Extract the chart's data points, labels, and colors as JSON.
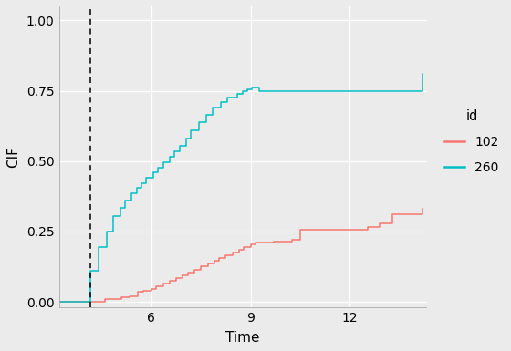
{
  "title": "",
  "xlabel": "Time",
  "ylabel": "CIF",
  "xlim": [
    3.2,
    14.3
  ],
  "ylim": [
    -0.02,
    1.05
  ],
  "xticks": [
    6,
    9,
    12
  ],
  "yticks": [
    0.0,
    0.25,
    0.5,
    0.75,
    1.0
  ],
  "vline_x": 4.15,
  "bg_color": "#EBEBEB",
  "grid_color": "#FFFFFF",
  "color_102": "#F8766D",
  "color_260": "#00BFC4",
  "legend_title": "id",
  "legend_labels": [
    "102",
    "260"
  ],
  "line_width": 1.1,
  "series_102_x": [
    3.2,
    4.15,
    4.6,
    5.1,
    5.35,
    5.6,
    5.75,
    6.0,
    6.15,
    6.35,
    6.55,
    6.75,
    6.95,
    7.1,
    7.3,
    7.5,
    7.7,
    7.9,
    8.05,
    8.25,
    8.45,
    8.65,
    8.8,
    9.0,
    9.15,
    9.7,
    10.25,
    10.5,
    12.55,
    12.9,
    13.3,
    14.2
  ],
  "series_102_y": [
    0.0,
    0.0,
    0.01,
    0.015,
    0.02,
    0.035,
    0.04,
    0.045,
    0.055,
    0.065,
    0.075,
    0.085,
    0.095,
    0.105,
    0.115,
    0.125,
    0.135,
    0.145,
    0.155,
    0.165,
    0.175,
    0.185,
    0.195,
    0.205,
    0.21,
    0.215,
    0.22,
    0.255,
    0.265,
    0.28,
    0.31,
    0.33
  ],
  "series_260_x": [
    3.2,
    4.15,
    4.4,
    4.65,
    4.85,
    5.05,
    5.2,
    5.4,
    5.55,
    5.7,
    5.85,
    6.05,
    6.2,
    6.35,
    6.55,
    6.7,
    6.85,
    7.05,
    7.2,
    7.45,
    7.65,
    7.85,
    8.1,
    8.3,
    8.6,
    8.75,
    8.9,
    9.05,
    9.25,
    13.05,
    14.2
  ],
  "series_260_y": [
    0.0,
    0.11,
    0.195,
    0.25,
    0.305,
    0.335,
    0.36,
    0.385,
    0.405,
    0.42,
    0.44,
    0.46,
    0.475,
    0.495,
    0.515,
    0.535,
    0.555,
    0.58,
    0.61,
    0.64,
    0.665,
    0.69,
    0.71,
    0.725,
    0.74,
    0.75,
    0.755,
    0.76,
    0.75,
    0.75,
    0.81
  ]
}
